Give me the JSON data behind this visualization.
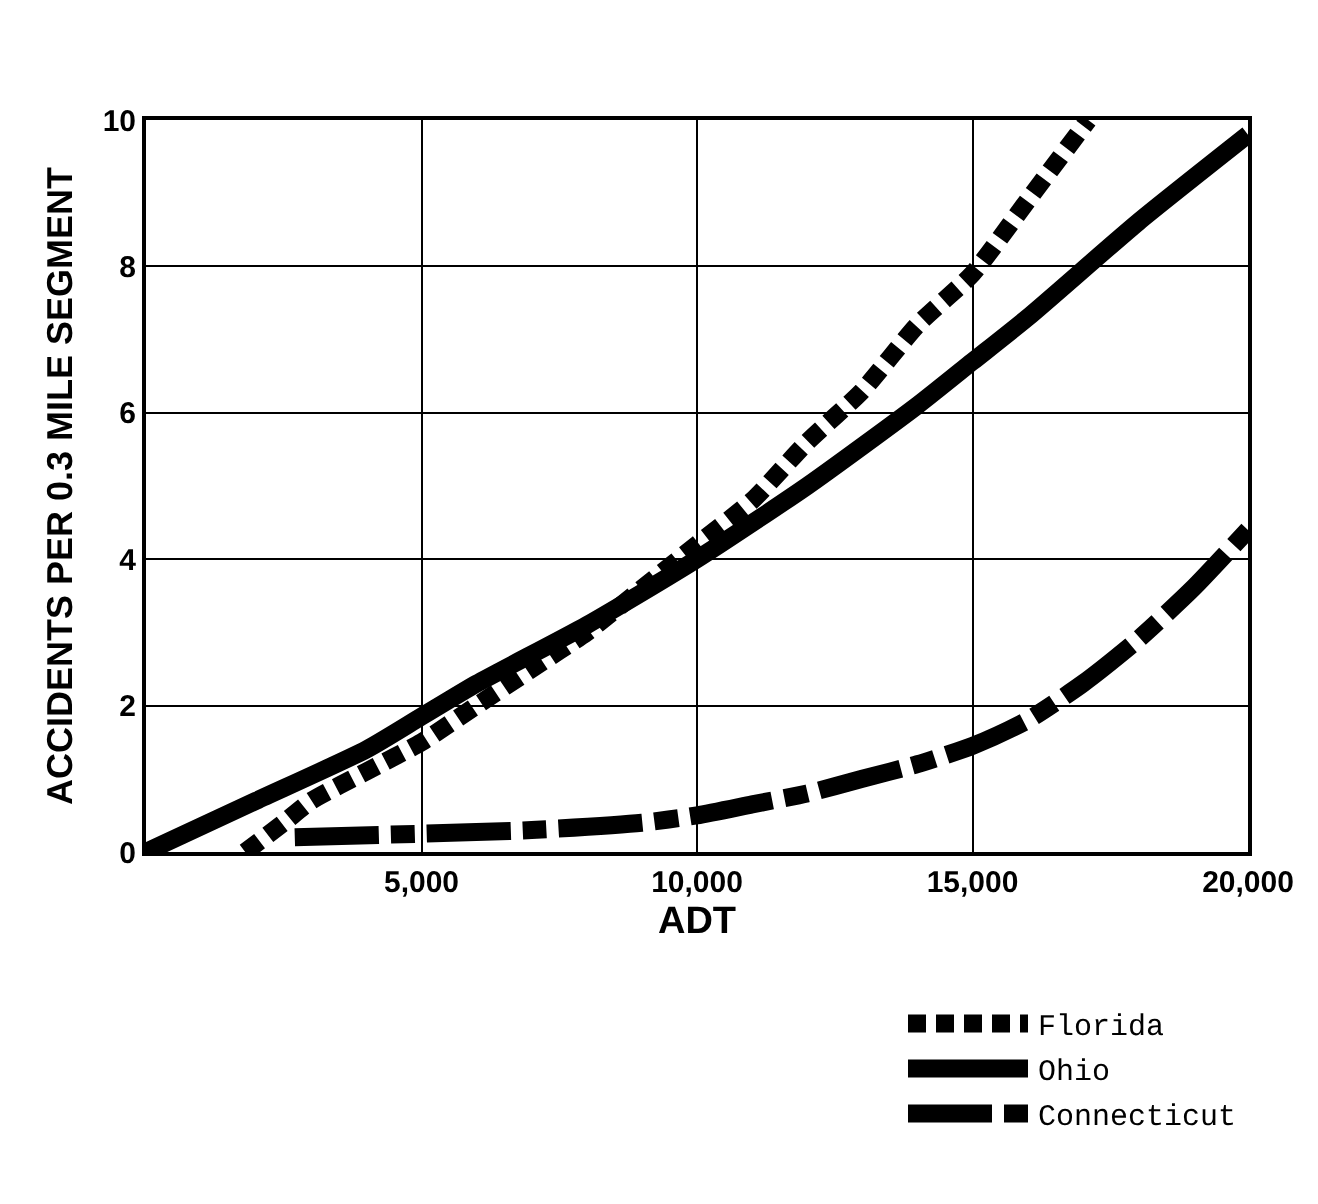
{
  "chart_data": {
    "type": "line",
    "xlabel": "ADT",
    "ylabel": "ACCIDENTS PER 0.3 MILE SEGMENT",
    "xlim": [
      0,
      20000
    ],
    "ylim": [
      0,
      10
    ],
    "xticks": [
      {
        "value": 5000,
        "label": "5,000"
      },
      {
        "value": 10000,
        "label": "10,000"
      },
      {
        "value": 15000,
        "label": "15,000"
      },
      {
        "value": 20000,
        "label": "20,000"
      }
    ],
    "yticks": [
      0,
      2,
      4,
      6,
      8,
      10
    ],
    "grid": true,
    "legend": "bottom right",
    "series": [
      {
        "name": "Florida",
        "color": "#000000",
        "line_style": "dotted",
        "x": [
          1800,
          2500,
          3000,
          4000,
          5000,
          6000,
          7000,
          8000,
          9000,
          10000,
          11000,
          12000,
          13000,
          14000,
          15000,
          16000,
          17100
        ],
        "values": [
          0,
          0.4,
          0.7,
          1.1,
          1.5,
          2.0,
          2.5,
          3.0,
          3.6,
          4.2,
          4.8,
          5.6,
          6.3,
          7.2,
          7.9,
          8.9,
          10
        ]
      },
      {
        "name": "Ohio",
        "color": "#000000",
        "line_style": "solid",
        "x": [
          0,
          2000,
          4000,
          5000,
          6000,
          8000,
          10000,
          12000,
          14000,
          15000,
          16000,
          18000,
          20000
        ],
        "values": [
          0,
          0.7,
          1.4,
          1.85,
          2.3,
          3.1,
          4.0,
          5.0,
          6.1,
          6.7,
          7.3,
          8.6,
          9.8
        ]
      },
      {
        "name": "Connecticut",
        "color": "#000000",
        "line_style": "dashdot",
        "x": [
          2700,
          5000,
          7000,
          9000,
          10000,
          11000,
          12000,
          13000,
          14000,
          15000,
          16000,
          17000,
          18000,
          19000,
          20000
        ],
        "values": [
          0.2,
          0.25,
          0.3,
          0.4,
          0.5,
          0.65,
          0.8,
          1.0,
          1.2,
          1.45,
          1.8,
          2.3,
          2.9,
          3.6,
          4.4
        ]
      }
    ]
  }
}
